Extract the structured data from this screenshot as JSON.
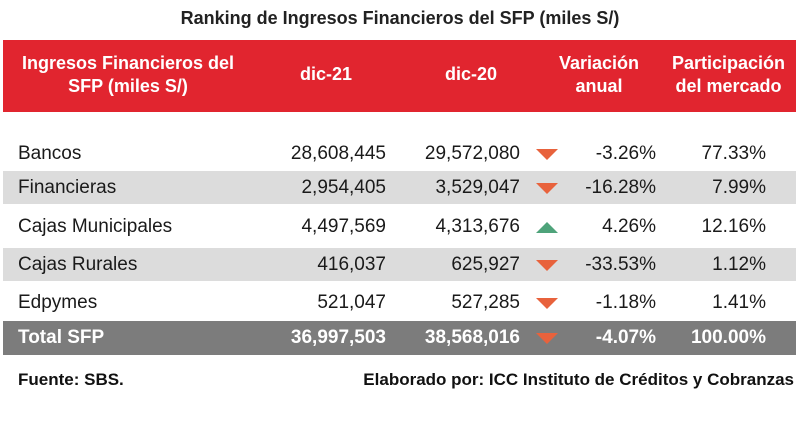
{
  "title": "Ranking de Ingresos Financieros del SFP (miles S/)",
  "header": {
    "label_line1": "Ingresos Financieros del",
    "label_line2": "SFP (miles S/)",
    "col_dic21": "dic-21",
    "col_dic20": "dic-20",
    "col_var_line1": "Variación",
    "col_var_line2": "anual",
    "col_part_line1": "Participación",
    "col_part_line2": "del mercado"
  },
  "rows": [
    {
      "name": "Bancos",
      "dic21": "28,608,445",
      "dic20": "29,572,080",
      "trend": "down",
      "variation": "-3.26%",
      "share": "77.33%"
    },
    {
      "name": "Financieras",
      "dic21": "2,954,405",
      "dic20": "3,529,047",
      "trend": "down",
      "variation": "-16.28%",
      "share": "7.99%"
    },
    {
      "name": "Cajas Municipales",
      "dic21": "4,497,569",
      "dic20": "4,313,676",
      "trend": "up",
      "variation": "4.26%",
      "share": "12.16%"
    },
    {
      "name": "Cajas Rurales",
      "dic21": "416,037",
      "dic20": "625,927",
      "trend": "down",
      "variation": "-33.53%",
      "share": "1.12%"
    },
    {
      "name": "Edpymes",
      "dic21": "521,047",
      "dic20": "527,285",
      "trend": "down",
      "variation": "-1.18%",
      "share": "1.41%"
    }
  ],
  "total": {
    "name": "Total SFP",
    "dic21": "36,997,503",
    "dic20": "38,568,016",
    "trend": "down",
    "variation": "-4.07%",
    "share": "100.00%"
  },
  "footer": {
    "source": "Fuente: SBS.",
    "author": "Elaborado por: ICC Instituto de Créditos y Cobranzas"
  },
  "colors": {
    "header_bg": "#e1252f",
    "total_bg": "#7c7c7c",
    "shaded_row": "#dcdcdc",
    "arrow_down": "#e8623c",
    "arrow_up": "#4ea37a"
  },
  "icons": {
    "down": "triangle-down-icon",
    "up": "triangle-up-icon"
  }
}
